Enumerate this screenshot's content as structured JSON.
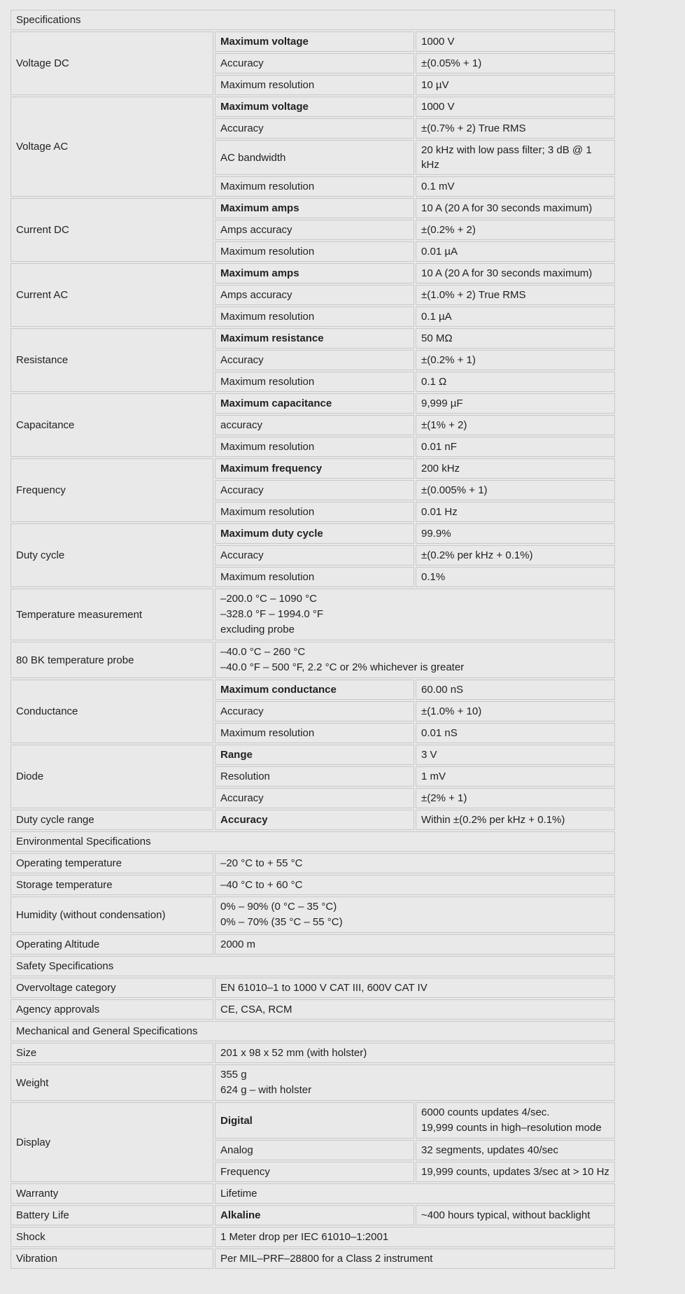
{
  "page": {
    "background": "#e9e9e9",
    "cell_background": "#e9e9e9",
    "border_color": "#c8c8c8",
    "text_color": "#222222"
  },
  "table": {
    "sections": [
      {
        "type": "header",
        "label": "Specifications"
      },
      {
        "type": "group",
        "label": "Voltage DC",
        "rows": [
          {
            "param": "Maximum voltage",
            "bold": true,
            "value": "1000 V"
          },
          {
            "param": "Accuracy",
            "value": "±(0.05% + 1)"
          },
          {
            "param": "Maximum resolution",
            "value": "10 µV"
          }
        ]
      },
      {
        "type": "group",
        "label": "Voltage AC",
        "rows": [
          {
            "param": "Maximum voltage",
            "bold": true,
            "value": "1000 V"
          },
          {
            "param": "Accuracy",
            "value": "±(0.7% + 2) True RMS"
          },
          {
            "param": "AC bandwidth",
            "value": "20 kHz with low pass filter; 3 dB @ 1 kHz"
          },
          {
            "param": "Maximum resolution",
            "value": "0.1 mV"
          }
        ]
      },
      {
        "type": "group",
        "label": "Current DC",
        "rows": [
          {
            "param": "Maximum amps",
            "bold": true,
            "value": "10 A (20 A for 30 seconds maximum)"
          },
          {
            "param": "Amps accuracy",
            "value": "±(0.2% + 2)"
          },
          {
            "param": "Maximum resolution",
            "value": "0.01 µA"
          }
        ]
      },
      {
        "type": "group",
        "label": "Current AC",
        "rows": [
          {
            "param": "Maximum amps",
            "bold": true,
            "value": "10 A (20 A for 30 seconds maximum)"
          },
          {
            "param": "Amps accuracy",
            "value": "±(1.0% + 2) True RMS"
          },
          {
            "param": "Maximum resolution",
            "value": "0.1 µA"
          }
        ]
      },
      {
        "type": "group",
        "label": "Resistance",
        "rows": [
          {
            "param": "Maximum resistance",
            "bold": true,
            "value": "50 MΩ"
          },
          {
            "param": "Accuracy",
            "value": "±(0.2% + 1)"
          },
          {
            "param": "Maximum resolution",
            "value": "0.1 Ω"
          }
        ]
      },
      {
        "type": "group",
        "label": "Capacitance",
        "rows": [
          {
            "param": "Maximum capacitance",
            "bold": true,
            "value": "9,999 µF"
          },
          {
            "param": "accuracy",
            "value": "±(1% + 2)"
          },
          {
            "param": "Maximum resolution",
            "value": "0.01 nF"
          }
        ]
      },
      {
        "type": "group",
        "label": "Frequency",
        "rows": [
          {
            "param": "Maximum frequency",
            "bold": true,
            "value": "200 kHz"
          },
          {
            "param": "Accuracy",
            "value": "±(0.005% + 1)"
          },
          {
            "param": "Maximum resolution",
            "value": "0.01 Hz"
          }
        ]
      },
      {
        "type": "group",
        "label": "Duty cycle",
        "rows": [
          {
            "param": "Maximum duty cycle",
            "bold": true,
            "value": "99.9%"
          },
          {
            "param": "Accuracy",
            "value": "±(0.2% per kHz + 0.1%)"
          },
          {
            "param": "Maximum resolution",
            "value": "0.1%"
          }
        ]
      },
      {
        "type": "pair",
        "label": "Temperature measurement",
        "value_lines": [
          "–200.0 °C – 1090 °C",
          "–328.0 °F – 1994.0 °F",
          "excluding probe"
        ]
      },
      {
        "type": "pair",
        "label": "80 BK temperature probe",
        "value_lines": [
          "–40.0 °C – 260 °C",
          "–40.0 °F – 500 °F, 2.2 °C or 2% whichever is greater"
        ]
      },
      {
        "type": "group",
        "label": "Conductance",
        "rows": [
          {
            "param": "Maximum conductance",
            "bold": true,
            "value": "60.00 nS"
          },
          {
            "param": "Accuracy",
            "value": "±(1.0% + 10)"
          },
          {
            "param": "Maximum resolution",
            "value": "0.01 nS"
          }
        ]
      },
      {
        "type": "group",
        "label": "Diode",
        "rows": [
          {
            "param": "Range",
            "bold": true,
            "value": "3 V"
          },
          {
            "param": "Resolution",
            "value": "1 mV"
          },
          {
            "param": "Accuracy",
            "value": "±(2% + 1)"
          }
        ]
      },
      {
        "type": "group",
        "label": "Duty cycle range",
        "rows": [
          {
            "param": "Accuracy",
            "bold": true,
            "value": "Within ±(0.2% per kHz + 0.1%)"
          }
        ]
      },
      {
        "type": "header",
        "label": "Environmental Specifications"
      },
      {
        "type": "pair",
        "label": "Operating temperature",
        "value": "–20 °C to + 55 °C"
      },
      {
        "type": "pair",
        "label": "Storage temperature",
        "value": "–40 °C to + 60 °C"
      },
      {
        "type": "pair",
        "label": "Humidity (without condensation)",
        "value_lines": [
          "0% – 90% (0 °C – 35 °C)",
          "0% – 70% (35 °C – 55 °C)"
        ]
      },
      {
        "type": "pair",
        "label": "Operating Altitude",
        "value": "2000 m"
      },
      {
        "type": "header",
        "label": "Safety Specifications"
      },
      {
        "type": "pair",
        "label": "Overvoltage category",
        "value": "EN 61010–1 to 1000 V CAT III, 600V CAT IV"
      },
      {
        "type": "pair",
        "label": "Agency approvals",
        "value": "CE, CSA, RCM"
      },
      {
        "type": "header",
        "label": "Mechanical and General Specifications"
      },
      {
        "type": "pair",
        "label": "Size",
        "value": "201 x 98 x 52 mm (with holster)"
      },
      {
        "type": "pair",
        "label": "Weight",
        "value_lines": [
          "355 g",
          "624 g – with holster"
        ]
      },
      {
        "type": "group",
        "label": "Display",
        "rows": [
          {
            "param": "Digital",
            "bold": true,
            "value_lines": [
              "6000 counts updates 4/sec.",
              "19,999 counts in high–resolution mode"
            ]
          },
          {
            "param": "Analog",
            "value": "32 segments, updates 40/sec"
          },
          {
            "param": "Frequency",
            "value": "19,999 counts, updates 3/sec at > 10 Hz"
          }
        ]
      },
      {
        "type": "pair",
        "label": "Warranty",
        "value": "Lifetime"
      },
      {
        "type": "group",
        "label": "Battery Life",
        "rows": [
          {
            "param": "Alkaline",
            "bold": true,
            "value": "~400 hours typical, without backlight"
          }
        ]
      },
      {
        "type": "pair",
        "label": "Shock",
        "value": "1 Meter drop per IEC 61010–1:2001"
      },
      {
        "type": "pair",
        "label": "Vibration",
        "value": "Per MIL–PRF–28800 for a Class 2 instrument"
      }
    ]
  }
}
